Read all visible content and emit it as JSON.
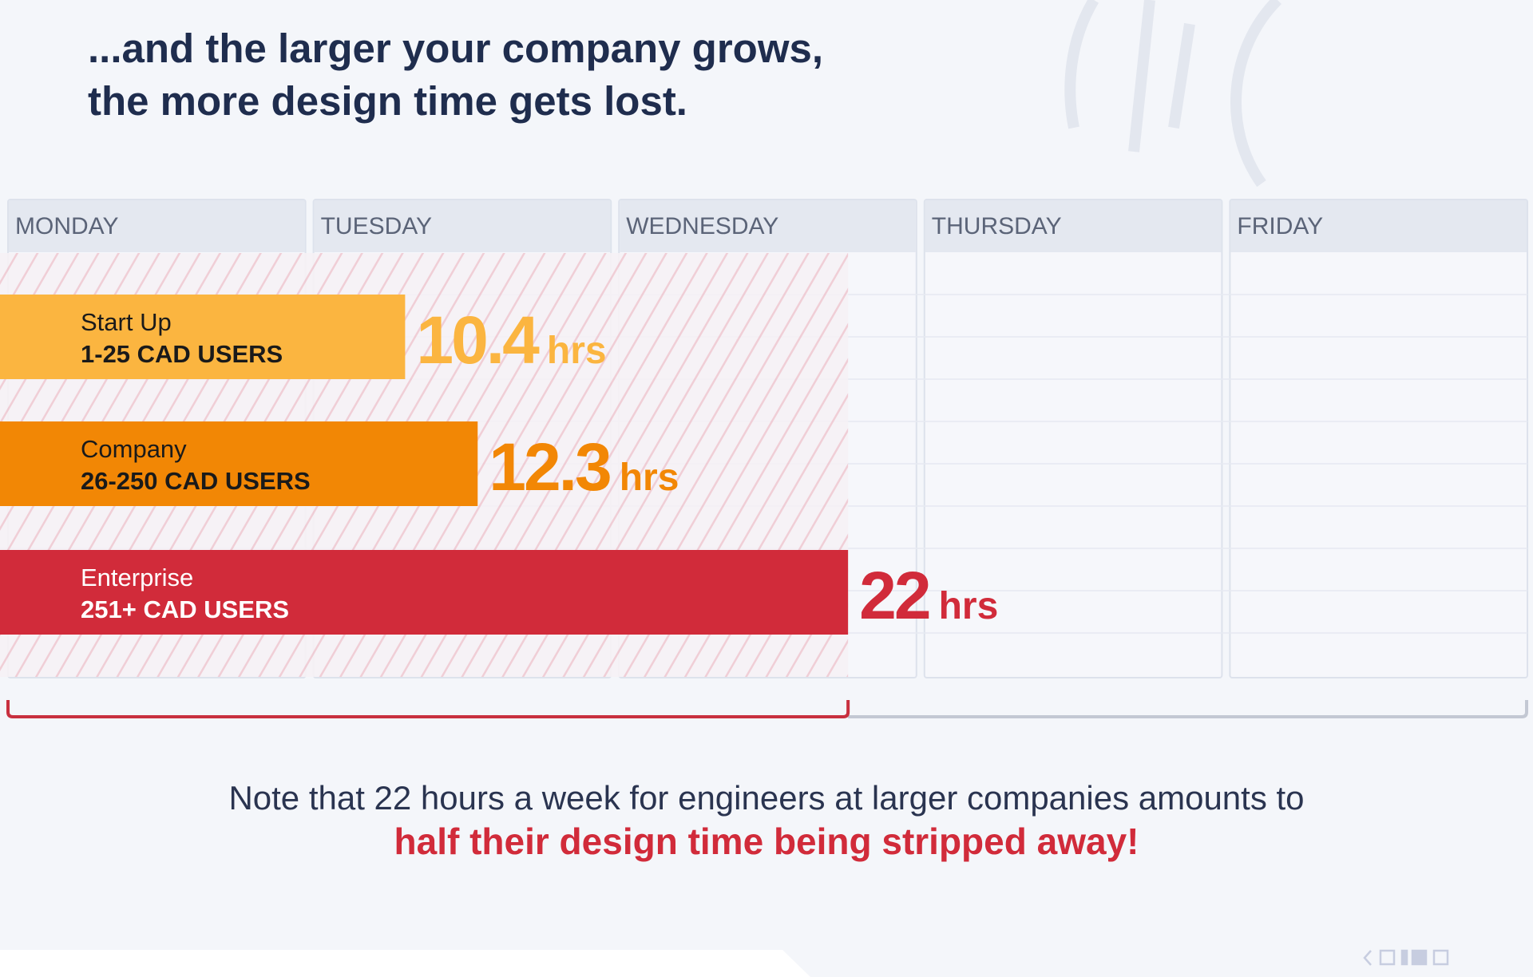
{
  "header": {
    "line1": "...and the larger your company grows,",
    "line2": "the more design time gets lost."
  },
  "chart_data": {
    "type": "bar",
    "orientation": "horizontal",
    "categories": [
      "Start Up",
      "Company",
      "Enterprise"
    ],
    "category_sublabels": [
      "1-25 CAD USERS",
      "26-250 CAD USERS",
      "251+ CAD USERS"
    ],
    "values": [
      10.4,
      12.3,
      22
    ],
    "value_labels": [
      "10.4",
      "12.3",
      "22"
    ],
    "value_unit": "hrs",
    "colors": [
      "#fbb540",
      "#f28705",
      "#d12b3a"
    ],
    "xlim": [
      0,
      40
    ],
    "xticks": [
      {
        "value": 0,
        "label": "MONDAY"
      },
      {
        "value": 8,
        "label": "TUESDAY"
      },
      {
        "value": 16,
        "label": "WEDNESDAY"
      },
      {
        "value": 24,
        "label": "THURSDAY"
      },
      {
        "value": 32,
        "label": "FRIDAY"
      }
    ]
  },
  "note": {
    "line1": "Note that 22 hours a week for engineers at larger companies amounts to",
    "line2": "half their design time being stripped away!"
  }
}
